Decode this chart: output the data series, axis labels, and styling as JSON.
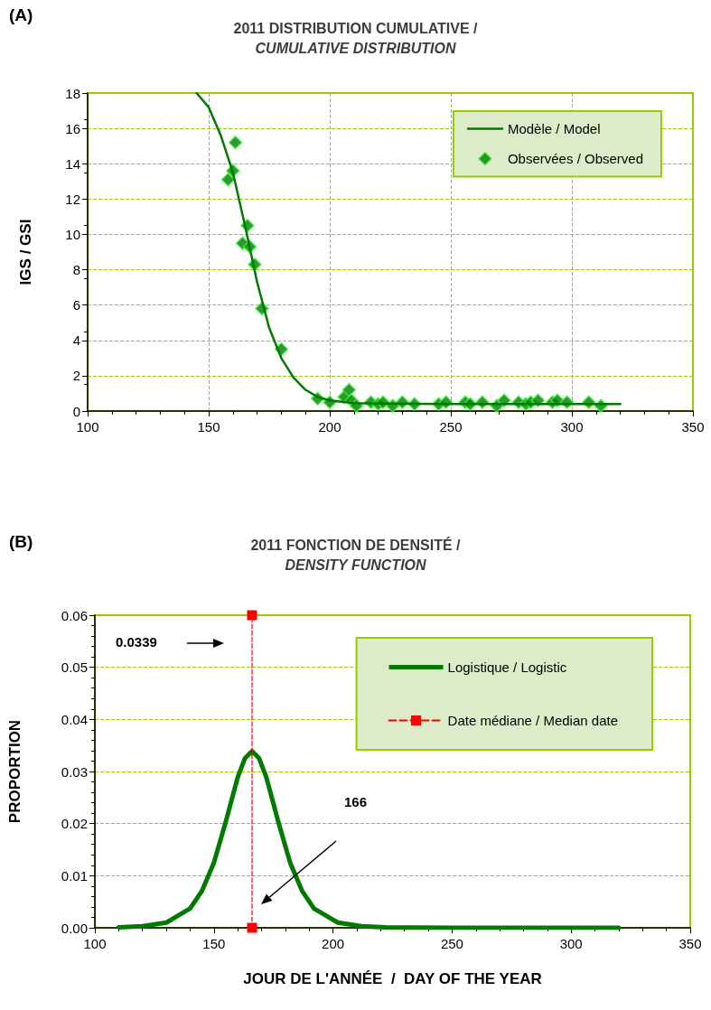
{
  "chart_data": [
    {
      "type": "line",
      "title": "2011 DISTRIBUTION CUMULATIVE /\nCUMULATIVE DISTRIBUTION",
      "ylabel": "IGS / GSI",
      "annotations": [
        "(A)"
      ],
      "xlim": [
        100,
        350
      ],
      "xticks": [
        100,
        150,
        200,
        250,
        300,
        350
      ],
      "ylim": [
        0,
        18
      ],
      "yticks": [
        0,
        2,
        4,
        6,
        8,
        10,
        12,
        14,
        16,
        18
      ],
      "grid": true,
      "legend": "top right",
      "series": [
        {
          "name": "Modèle / Model",
          "color": "#007a00",
          "marker": "none",
          "x": [
            145,
            150,
            155,
            160,
            165,
            170,
            175,
            180,
            185,
            190,
            195,
            200,
            210,
            220,
            250,
            320
          ],
          "values": [
            18,
            17.2,
            15.6,
            13.5,
            10.5,
            7.3,
            4.7,
            3.0,
            1.9,
            1.2,
            0.8,
            0.6,
            0.45,
            0.42,
            0.4,
            0.4
          ]
        },
        {
          "type": "scatter",
          "name": "Observées / Observed",
          "color": "#007a00",
          "marker": "diamond",
          "x": [
            158,
            160,
            161,
            164,
            166,
            167,
            169,
            172,
            180,
            195,
            200,
            206,
            208,
            209,
            211,
            217,
            220,
            222,
            226,
            230,
            235,
            245,
            248,
            256,
            258,
            263,
            269,
            272,
            278,
            281,
            283,
            286,
            292,
            294,
            298,
            307,
            312
          ],
          "values": [
            13.1,
            13.6,
            15.2,
            9.5,
            10.5,
            9.3,
            8.3,
            5.8,
            3.5,
            0.7,
            0.5,
            0.8,
            1.2,
            0.6,
            0.3,
            0.5,
            0.4,
            0.5,
            0.3,
            0.5,
            0.4,
            0.4,
            0.5,
            0.5,
            0.4,
            0.5,
            0.3,
            0.6,
            0.5,
            0.4,
            0.5,
            0.6,
            0.5,
            0.6,
            0.5,
            0.5,
            0.3
          ]
        }
      ]
    },
    {
      "type": "line",
      "title": "2011 FONCTION DE DENSITÉ /\nDENSITY FUNCTION",
      "xlabel": "JOUR DE L'ANNÉE  /  DAY OF THE YEAR",
      "ylabel": "PROPORTION",
      "annotations": [
        "(B)",
        "0.0339",
        "166"
      ],
      "xlim": [
        100,
        350
      ],
      "xticks": [
        100,
        150,
        200,
        250,
        300,
        350
      ],
      "ylim": [
        0,
        0.06
      ],
      "yticks": [
        {
          "value": 0,
          "label": "0.00"
        },
        {
          "value": 0.01,
          "label": "0.01"
        },
        {
          "value": 0.02,
          "label": "0.02"
        },
        {
          "value": 0.03,
          "label": "0.03"
        },
        {
          "value": 0.04,
          "label": "0.04"
        },
        {
          "value": 0.05,
          "label": "0.05"
        },
        {
          "value": 0.06,
          "label": "0.06"
        }
      ],
      "grid": "y",
      "legend": "top right",
      "series": [
        {
          "name": "Logistique / Logistic",
          "color": "#007a00",
          "marker": "none",
          "line_style": "solid",
          "x": [
            110,
            120,
            130,
            140,
            145,
            150,
            155,
            160,
            163,
            166,
            169,
            172,
            177,
            182,
            187,
            192,
            202,
            212,
            222,
            250,
            320
          ],
          "values": [
            0.0001,
            0.0003,
            0.001,
            0.0037,
            0.0071,
            0.0125,
            0.0204,
            0.0289,
            0.0325,
            0.0339,
            0.0325,
            0.0289,
            0.0204,
            0.0125,
            0.0071,
            0.0037,
            0.001,
            0.0003,
            0.0001,
            0,
            0
          ]
        },
        {
          "name": "Date médiane / Median date",
          "color": "#ff0000",
          "marker": "square",
          "line_style": "dashed",
          "x": [
            166,
            166
          ],
          "values": [
            0,
            0.06
          ]
        }
      ]
    }
  ]
}
